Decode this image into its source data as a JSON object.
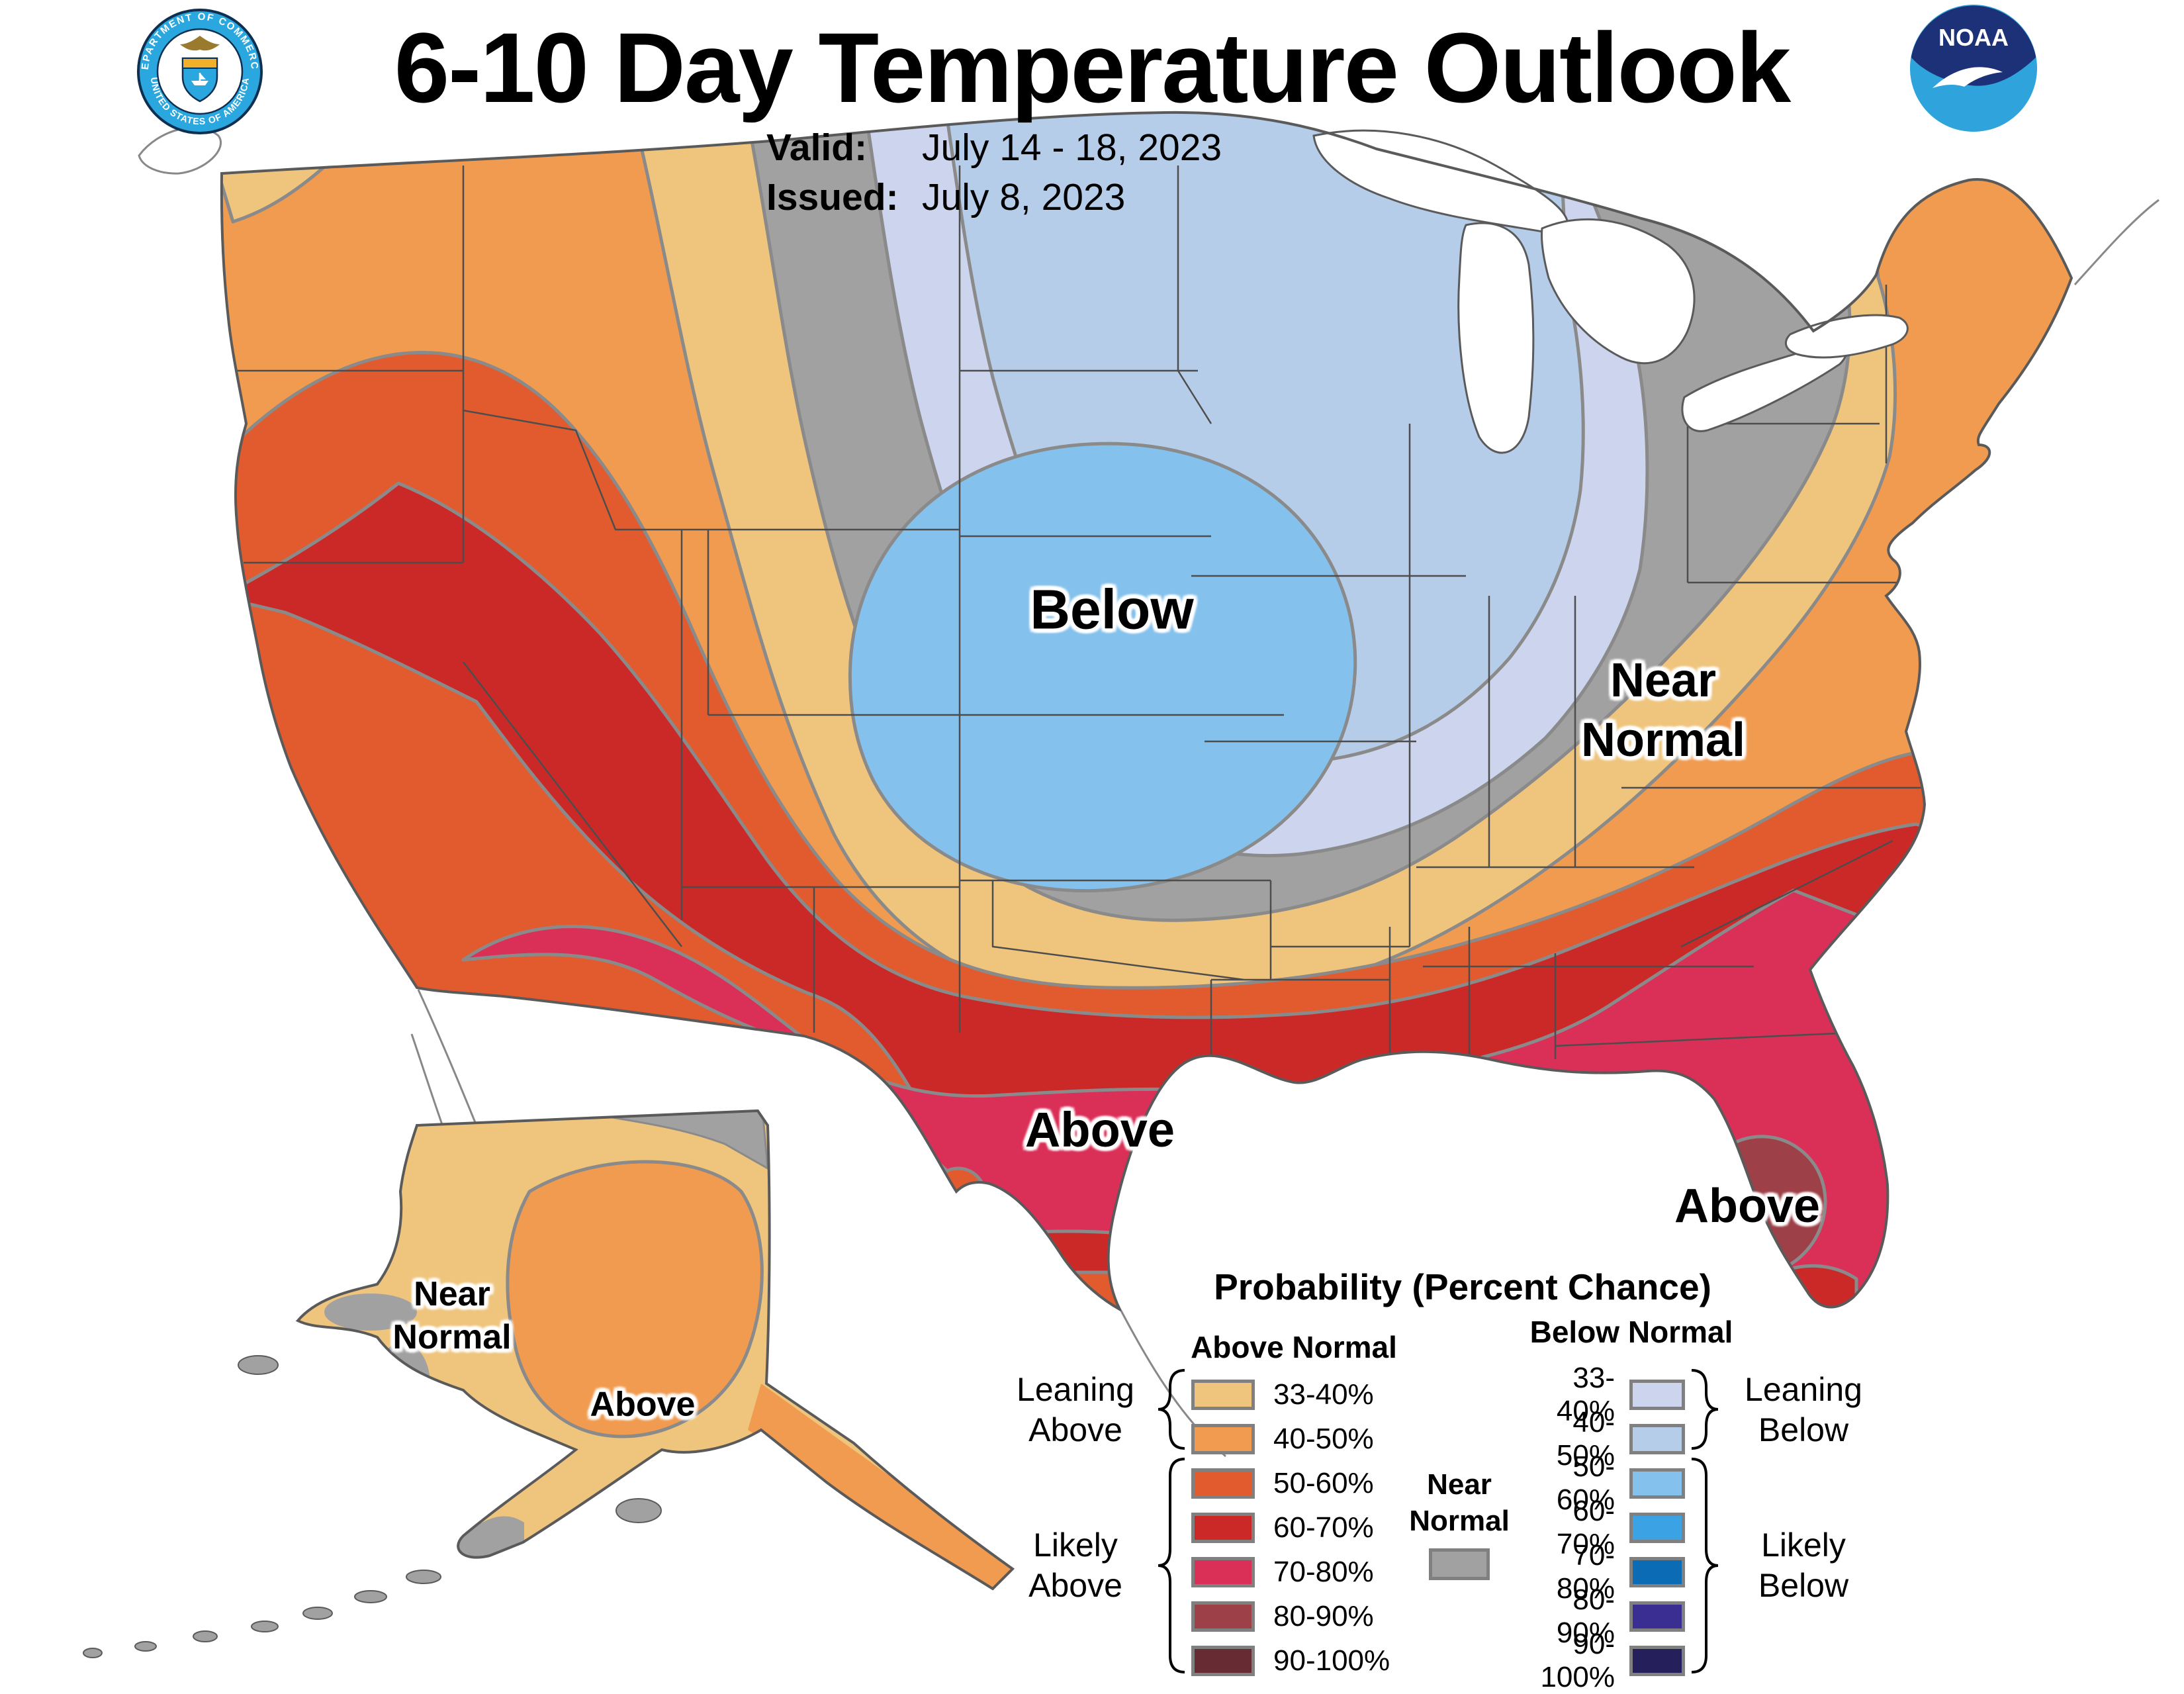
{
  "header": {
    "title": "6-10 Day Temperature Outlook",
    "valid_label": "Valid:",
    "valid_value": "July 14 - 18, 2023",
    "issued_label": "Issued:",
    "issued_value": "July 8, 2023"
  },
  "logos": {
    "noaa_text": "NOAA",
    "doc_ring_top": "DEPARTMENT OF COMMERCE",
    "doc_ring_bottom": "UNITED STATES OF AMERICA"
  },
  "map_labels": {
    "below": "Below",
    "near_normal_east": [
      "Near",
      "Normal"
    ],
    "above_central": "Above",
    "above_florida": "Above",
    "near_normal_alaska": [
      "Near",
      "Normal"
    ],
    "above_alaska": "Above"
  },
  "legend": {
    "title": "Probability (Percent Chance)",
    "above_normal_header": "Above Normal",
    "below_normal_header": "Below Normal",
    "near_normal_label_lines": [
      "Near",
      "Normal"
    ],
    "near_normal_color": "#a1a1a2",
    "ranges": [
      "33-40%",
      "40-50%",
      "50-60%",
      "60-70%",
      "70-80%",
      "80-90%",
      "90-100%"
    ],
    "above_colors": [
      "#efc57e",
      "#f09b50",
      "#e25b2f",
      "#cb2928",
      "#da2f57",
      "#9d4047",
      "#672b34"
    ],
    "below_colors": [
      "#cdd4ed",
      "#b6cde9",
      "#84c1ec",
      "#3ba3e3",
      "#0b6bb5",
      "#3a2e92",
      "#25205b"
    ],
    "groups": {
      "leaning_above": [
        "Leaning",
        "Above"
      ],
      "likely_above": [
        "Likely",
        "Above"
      ],
      "leaning_below": [
        "Leaning",
        "Below"
      ],
      "likely_below": [
        "Likely",
        "Below"
      ]
    }
  },
  "map_data": {
    "type": "probability-outlook-map",
    "regions": [
      {
        "area": "Northern Plains / Upper Midwest core (SD-NE-IA-MN)",
        "category": "Below Normal",
        "probability": "50-60%"
      },
      {
        "area": "Ring around core (ND, MN, WI, KS, MO)",
        "category": "Below Normal",
        "probability": "40-50%"
      },
      {
        "area": "Outer ring (E MT, MI, IL, IN)",
        "category": "Below Normal",
        "probability": "33-40%"
      },
      {
        "area": "Band MT-WY-CO-KS-KY-OH-W NY",
        "category": "Near Normal",
        "probability": ""
      },
      {
        "area": "Band W MT, VA, upstate NY",
        "category": "Above Normal",
        "probability": "33-40%"
      },
      {
        "area": "Pacific NW, New England, mid-Atlantic",
        "category": "Above Normal",
        "probability": "40-50%"
      },
      {
        "area": "Oregon-Great Basin rim, southern tier, NC coast",
        "category": "Above Normal",
        "probability": "50-60%"
      },
      {
        "area": "California, Nevada, Utah, Gulf states",
        "category": "Above Normal",
        "probability": "60-70%"
      },
      {
        "area": "Arizona, S New Mexico, central/S Texas, Gulf coast, Florida",
        "category": "Above Normal",
        "probability": "70-80%"
      },
      {
        "area": "Central Florida peninsula",
        "category": "Above Normal",
        "probability": "80-90%"
      },
      {
        "area": "Alaska interior/south",
        "category": "Above Normal",
        "probability": "40-50%"
      },
      {
        "area": "Alaska north and west fringe",
        "category": "Above Normal",
        "probability": "33-40%"
      },
      {
        "area": "Alaska west coast slivers, Aleutians",
        "category": "Near Normal",
        "probability": ""
      }
    ]
  }
}
